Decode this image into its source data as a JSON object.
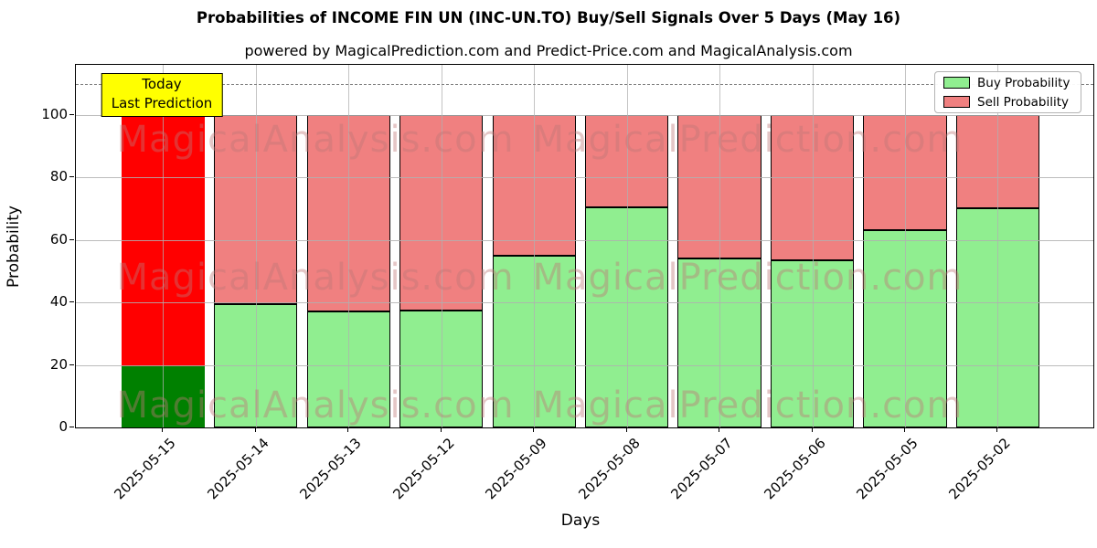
{
  "title": "Probabilities of INCOME FIN UN (INC-UN.TO) Buy/Sell Signals Over 5 Days (May 16)",
  "subtitle": "powered by MagicalPrediction.com and Predict-Price.com and MagicalAnalysis.com",
  "axes": {
    "x_label": "Days",
    "y_label": "Probability",
    "y_ticks": [
      0,
      20,
      40,
      60,
      80,
      100
    ],
    "ylim": [
      0,
      116
    ],
    "dashed_line_y": 110
  },
  "legend": {
    "items": [
      {
        "label": "Buy Probability",
        "color": "#90EE90"
      },
      {
        "label": "Sell Probability",
        "color": "#F08080"
      }
    ]
  },
  "annotation": {
    "line1": "Today",
    "line2": "Last Prediction",
    "bg_color": "#FFFF00"
  },
  "watermarks": {
    "left": "MagicalAnalysis.com",
    "right": "MagicalPrediction.com"
  },
  "chart_data": {
    "type": "bar",
    "stacked": true,
    "grid": true,
    "legend_position": "upper right",
    "categories": [
      "2025-05-15",
      "2025-05-14",
      "2025-05-13",
      "2025-05-12",
      "2025-05-09",
      "2025-05-08",
      "2025-05-07",
      "2025-05-06",
      "2025-05-05",
      "2025-05-02"
    ],
    "series": [
      {
        "name": "Buy Probability",
        "color": "#90EE90",
        "values": [
          19.5,
          39.5,
          37,
          37.5,
          55,
          70.5,
          54,
          53.5,
          63,
          70
        ]
      },
      {
        "name": "Sell Probability",
        "color": "#F08080",
        "values": [
          80.5,
          60.5,
          63,
          62.5,
          45,
          29.5,
          46,
          46.5,
          37,
          30
        ]
      }
    ],
    "highlight_bar": {
      "index": 0,
      "category": "2025-05-15",
      "buy_color": "#008000",
      "sell_color": "#FF0000",
      "label": "Today / Last Prediction"
    },
    "title": "Probabilities of INCOME FIN UN (INC-UN.TO) Buy/Sell Signals Over 5 Days (May 16)",
    "xlabel": "Days",
    "ylabel": "Probability",
    "ylim": [
      0,
      116
    ],
    "reference_line": {
      "y": 110,
      "style": "dashed",
      "color": "#7f7f7f"
    }
  }
}
